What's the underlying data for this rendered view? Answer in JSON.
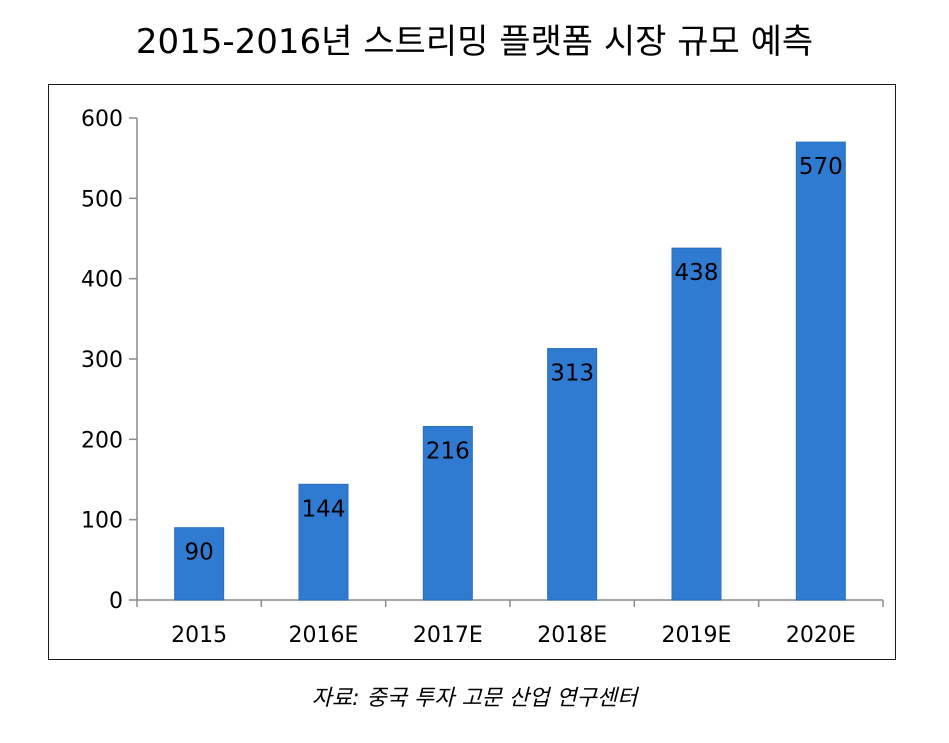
{
  "title": "2015-2016년 스트리밍 플랫폼 시장 규모 예측",
  "source": "자료: 중국 투자 고문 산업 연구센터",
  "colors": {
    "bar": "#2f7bd1",
    "bar_edge": "#2a6fbe",
    "axis": "#8a8a8a",
    "frame": "#1a1a1a",
    "text": "#000000"
  },
  "chart_data": {
    "type": "bar",
    "title": "2015-2016년 스트리밍 플랫폼 시장 규모 예측",
    "xlabel": "",
    "ylabel": "",
    "categories": [
      "2015",
      "2016E",
      "2017E",
      "2018E",
      "2019E",
      "2020E"
    ],
    "values": [
      90,
      144,
      216,
      313,
      438,
      570
    ],
    "data_labels": [
      "90",
      "144",
      "216",
      "313",
      "438",
      "570"
    ],
    "ylim": [
      0,
      600
    ],
    "yticks": [
      0,
      100,
      200,
      300,
      400,
      500,
      600
    ],
    "ytick_labels": [
      "0",
      "100",
      "200",
      "300",
      "400",
      "500",
      "600"
    ],
    "grid": false,
    "legend": "none"
  }
}
